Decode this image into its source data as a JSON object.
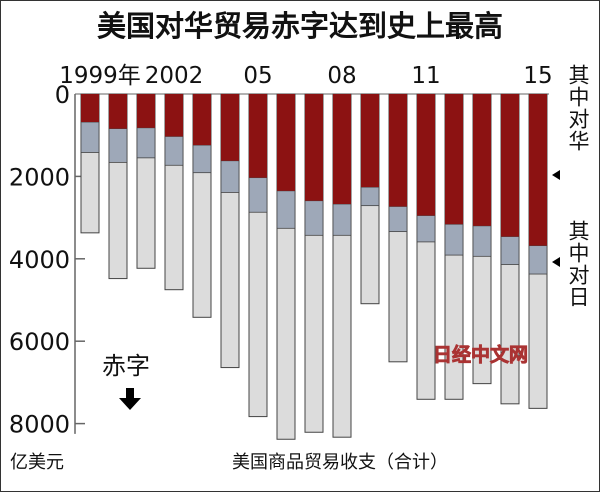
{
  "chart_data": {
    "type": "bar",
    "stacked": true,
    "title": "美国对华贸易赤字达到史上最高",
    "x_tick_labels": [
      "1999年",
      "2002",
      "05",
      "08",
      "11",
      "15"
    ],
    "years": [
      1999,
      2000,
      2001,
      2002,
      2003,
      2004,
      2005,
      2006,
      2007,
      2008,
      2009,
      2010,
      2011,
      2012,
      2013,
      2014,
      2015
    ],
    "y_tick_labels": [
      "0",
      "2000",
      "4000",
      "6000",
      "8000"
    ],
    "ylim": [
      0,
      8500
    ],
    "y_inverted": true,
    "ylabel": "亿美元",
    "xlabel": "美国商品贸易收支（合计）",
    "deficit_label": "赤字",
    "series": [
      {
        "name": "其中对华",
        "color": "#8c1212",
        "values": [
          680,
          840,
          820,
          1030,
          1240,
          1620,
          2030,
          2350,
          2590,
          2670,
          2260,
          2730,
          2950,
          3160,
          3200,
          3460,
          3680
        ]
      },
      {
        "name": "其中对日",
        "color": "#9ea8b8",
        "values": [
          740,
          820,
          730,
          700,
          670,
          770,
          840,
          910,
          840,
          760,
          450,
          610,
          640,
          750,
          740,
          680,
          690
        ]
      }
    ],
    "total": {
      "name": "美国商品贸易收支（合计）",
      "color": "#dcdcdc",
      "values": [
        3370,
        4480,
        4230,
        4750,
        5420,
        6640,
        7830,
        8380,
        8210,
        8330,
        5090,
        6500,
        7410,
        7410,
        7030,
        7520,
        7630
      ]
    },
    "legend": [
      "其中对华",
      "其中对日"
    ],
    "watermark": "日经中文网"
  }
}
